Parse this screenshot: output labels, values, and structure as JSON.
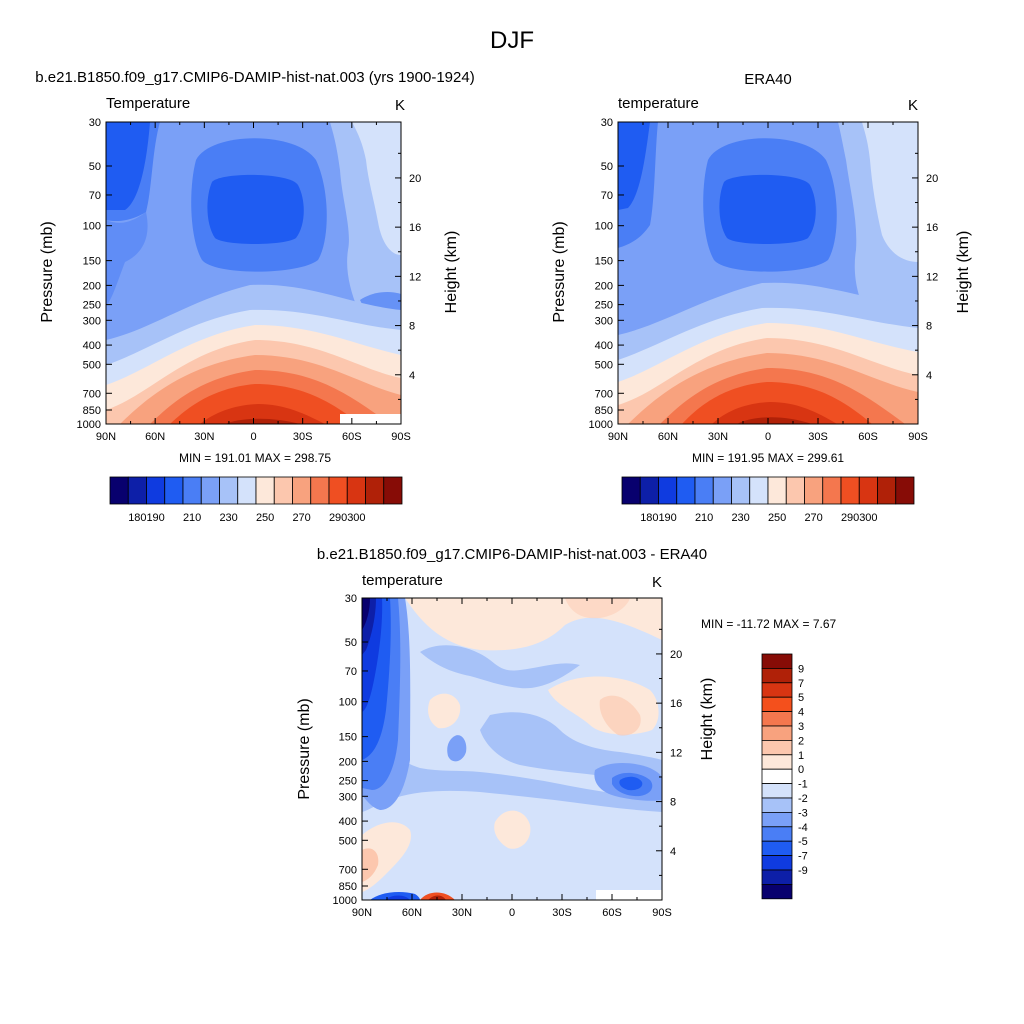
{
  "figure": {
    "title": "DJF"
  },
  "chart_data": [
    {
      "type": "heatmap",
      "title": "b.e21.B1850.f09_g17.CMIP6-DAMIP-hist-nat.003 (yrs 1900-1924)",
      "field_label": "Temperature",
      "units": "K",
      "xlabel": "",
      "ylabel": "Pressure (mb)",
      "ylabel_right": "Height (km)",
      "x_tick_labels": [
        "90N",
        "60N",
        "30N",
        "0",
        "30S",
        "60S",
        "90S"
      ],
      "x_ticks": [
        90,
        60,
        30,
        0,
        -30,
        -60,
        -90
      ],
      "xlim": [
        90,
        -90
      ],
      "y_tick_labels": [
        "30",
        "50",
        "70",
        "100",
        "150",
        "200",
        "250",
        "300",
        "400",
        "500",
        "700",
        "850",
        "1000"
      ],
      "y_ticks": [
        30,
        50,
        70,
        100,
        150,
        200,
        250,
        300,
        400,
        500,
        700,
        850,
        1000
      ],
      "ylim": [
        1000,
        30
      ],
      "y_scale": "log",
      "height_tick_labels": [
        "20",
        "16",
        "12",
        "8",
        "4"
      ],
      "height_ticks": [
        20,
        16,
        12,
        8,
        4
      ],
      "stats": "MIN = 191.01  MAX = 298.75",
      "min": 191.01,
      "max": 298.75,
      "colorbar_tick_labels": [
        "180",
        "190",
        "210",
        "230",
        "250",
        "270",
        "290",
        "300"
      ],
      "colorbar_orientation": "horizontal"
    },
    {
      "type": "heatmap",
      "title": "ERA40",
      "field_label": "temperature",
      "units": "K",
      "xlabel": "",
      "ylabel": "Pressure (mb)",
      "ylabel_right": "Height (km)",
      "x_tick_labels": [
        "90N",
        "60N",
        "30N",
        "0",
        "30S",
        "60S",
        "90S"
      ],
      "x_ticks": [
        90,
        60,
        30,
        0,
        -30,
        -60,
        -90
      ],
      "xlim": [
        90,
        -90
      ],
      "y_tick_labels": [
        "30",
        "50",
        "70",
        "100",
        "150",
        "200",
        "250",
        "300",
        "400",
        "500",
        "700",
        "850",
        "1000"
      ],
      "y_ticks": [
        30,
        50,
        70,
        100,
        150,
        200,
        250,
        300,
        400,
        500,
        700,
        850,
        1000
      ],
      "ylim": [
        1000,
        30
      ],
      "y_scale": "log",
      "height_tick_labels": [
        "20",
        "16",
        "12",
        "8",
        "4"
      ],
      "height_ticks": [
        20,
        16,
        12,
        8,
        4
      ],
      "stats": "MIN = 191.95  MAX = 299.61",
      "min": 191.95,
      "max": 299.61,
      "colorbar_tick_labels": [
        "180",
        "190",
        "210",
        "230",
        "250",
        "270",
        "290",
        "300"
      ],
      "colorbar_orientation": "horizontal"
    },
    {
      "type": "heatmap",
      "title": "b.e21.B1850.f09_g17.CMIP6-DAMIP-hist-nat.003 - ERA40",
      "field_label": "temperature",
      "units": "K",
      "xlabel": "",
      "ylabel": "Pressure (mb)",
      "ylabel_right": "Height (km)",
      "x_tick_labels": [
        "90N",
        "60N",
        "30N",
        "0",
        "30S",
        "60S",
        "90S"
      ],
      "x_ticks": [
        90,
        60,
        30,
        0,
        -30,
        -60,
        -90
      ],
      "xlim": [
        90,
        -90
      ],
      "y_tick_labels": [
        "30",
        "50",
        "70",
        "100",
        "150",
        "200",
        "250",
        "300",
        "400",
        "500",
        "700",
        "850",
        "1000"
      ],
      "y_ticks": [
        30,
        50,
        70,
        100,
        150,
        200,
        250,
        300,
        400,
        500,
        700,
        850,
        1000
      ],
      "ylim": [
        1000,
        30
      ],
      "y_scale": "log",
      "height_tick_labels": [
        "20",
        "16",
        "12",
        "8",
        "4"
      ],
      "height_ticks": [
        20,
        16,
        12,
        8,
        4
      ],
      "stats": "MIN = -11.72  MAX =   7.67",
      "min": -11.72,
      "max": 7.67,
      "colorbar_tick_labels": [
        "9",
        "7",
        "5",
        "4",
        "3",
        "2",
        "1",
        "0",
        "-1",
        "-2",
        "-3",
        "-4",
        "-5",
        "-7",
        "-9"
      ],
      "colorbar_orientation": "vertical"
    }
  ],
  "palettes": {
    "temperature": [
      "#08006e",
      "#0d1fa8",
      "#0f3be0",
      "#1f5cf2",
      "#4a7ef5",
      "#7aa0f7",
      "#a7c2f8",
      "#d4e2fb",
      "#fde8da",
      "#fcc7ae",
      "#f8a27e",
      "#f4774e",
      "#ef4f22",
      "#d83512",
      "#b02108",
      "#870c06"
    ],
    "difference": [
      "#870c06",
      "#b02108",
      "#d83512",
      "#f4501c",
      "#f4774e",
      "#f8a27e",
      "#fcc7ae",
      "#fde8da",
      "#ffffff",
      "#d4e2fb",
      "#a7c2f8",
      "#7aa0f7",
      "#4a7ef5",
      "#1f5cf2",
      "#0f3be0",
      "#0d1fa8",
      "#08006e"
    ]
  }
}
